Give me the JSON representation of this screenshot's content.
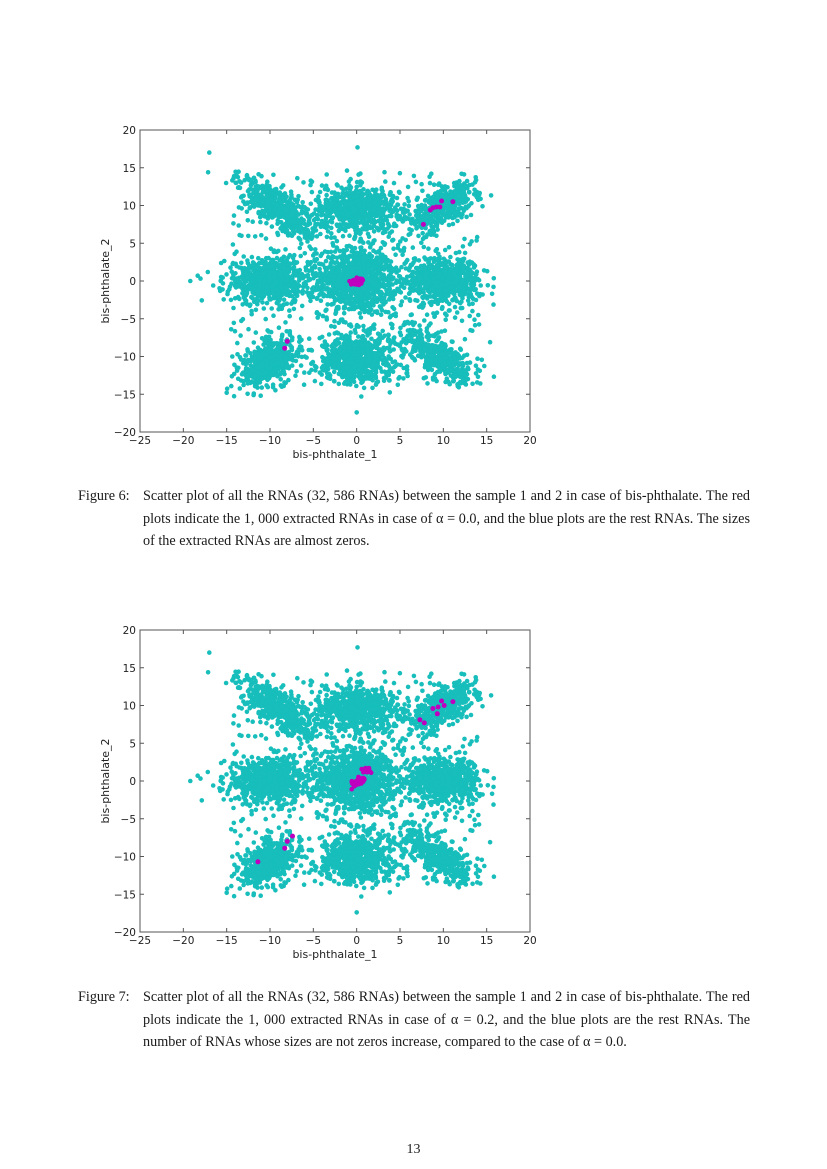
{
  "page_number": "13",
  "colors": {
    "rest_rnas": "#17bebb",
    "extracted_rnas": "#bf00bf",
    "axes": "#555555"
  },
  "figures": [
    {
      "label": "Figure 6:",
      "caption": "Scatter plot of all the RNAs (32, 586 RNAs) between the sample 1 and 2 in case of bis-phthalate. The red plots indicate the 1, 000 extracted RNAs in case of α = 0.0, and the blue plots are the rest RNAs. The sizes of the extracted RNAs are almost zeros."
    },
    {
      "label": "Figure 7:",
      "caption": "Scatter plot of all the RNAs (32, 586 RNAs) between the sample 1 and 2 in case of bis-phthalate. The red plots indicate the 1, 000 extracted RNAs in case of α = 0.2, and the blue plots are the rest RNAs. The number of RNAs whose sizes are not zeros increase, compared to the case of α = 0.0."
    }
  ],
  "chart_data": [
    {
      "type": "scatter",
      "title": "",
      "xlabel": "bis-phthalate_1",
      "ylabel": "bis-phthalate_2",
      "xlim": [
        -25,
        20
      ],
      "ylim": [
        -20,
        20
      ],
      "xticks": [
        "−25",
        "−20",
        "−15",
        "−10",
        "−5",
        "0",
        "5",
        "10",
        "15",
        "20"
      ],
      "yticks": [
        "20",
        "15",
        "10",
        "5",
        "0",
        "−5",
        "−10",
        "−15",
        "−20"
      ],
      "grid": false,
      "legend": null,
      "series": [
        {
          "name": "rest RNAs",
          "color": "#17bebb",
          "clusters": [
            {
              "center": [
                0,
                0
              ],
              "shape": "central dense blob"
            },
            {
              "center": [
                0,
                10
              ],
              "shape": "vertical arm, y 5..14.5"
            },
            {
              "center": [
                0,
                -10.5
              ],
              "shape": "vertical arm, y -5..-14"
            },
            {
              "center": [
                -10,
                0
              ],
              "shape": "horizontal arm, x -15..-5"
            },
            {
              "center": [
                10,
                0
              ],
              "shape": "horizontal arm, x 5..14"
            },
            {
              "center": [
                -9,
                9.5
              ],
              "shape": "diagonal cluster NW"
            },
            {
              "center": [
                9.5,
                9.5
              ],
              "shape": "diagonal cluster NE"
            },
            {
              "center": [
                -10,
                -10.5
              ],
              "shape": "diagonal cluster SW"
            },
            {
              "center": [
                9.5,
                -10
              ],
              "shape": "diagonal cluster SE"
            }
          ],
          "outliers": [
            [
              -17,
              17
            ],
            [
              0.1,
              17.7
            ],
            [
              -19.2,
              0
            ],
            [
              0,
              -17.4
            ],
            [
              15.4,
              -8.1
            ],
            [
              14.7,
              1.4
            ]
          ]
        },
        {
          "name": "extracted RNAs (α = 0.0)",
          "color": "#bf00bf",
          "points": [
            [
              0,
              0
            ],
            [
              0.3,
              0.2
            ],
            [
              -0.3,
              -0.2
            ],
            [
              8.5,
              9.4
            ],
            [
              8.8,
              9.7
            ],
            [
              9.2,
              9.8
            ],
            [
              9.6,
              9.8
            ],
            [
              9.8,
              10.6
            ],
            [
              11.1,
              10.5
            ],
            [
              7.7,
              7.5
            ],
            [
              -8,
              -8
            ],
            [
              -8.3,
              -8.9
            ]
          ]
        }
      ]
    },
    {
      "type": "scatter",
      "title": "",
      "xlabel": "bis-phthalate_1",
      "ylabel": "bis-phthalate_2",
      "xlim": [
        -25,
        20
      ],
      "ylim": [
        -20,
        20
      ],
      "xticks": [
        "−25",
        "−20",
        "−15",
        "−10",
        "−5",
        "0",
        "5",
        "10",
        "15",
        "20"
      ],
      "yticks": [
        "20",
        "15",
        "10",
        "5",
        "0",
        "−5",
        "−10",
        "−15",
        "−20"
      ],
      "grid": false,
      "legend": null,
      "series": [
        {
          "name": "rest RNAs",
          "color": "#17bebb",
          "clusters": "same as Figure 6",
          "outliers": [
            [
              -17,
              17
            ],
            [
              0.1,
              17.7
            ],
            [
              -19.2,
              0
            ],
            [
              0,
              -17.4
            ],
            [
              15.4,
              -8.1
            ],
            [
              14.7,
              1.4
            ]
          ]
        },
        {
          "name": "extracted RNAs (α = 0.2)",
          "color": "#bf00bf",
          "points": [
            [
              0,
              0
            ],
            [
              0.5,
              0.3
            ],
            [
              1.1,
              1.4
            ],
            [
              -0.4,
              -0.3
            ],
            [
              8.8,
              9.6
            ],
            [
              9.4,
              9.8
            ],
            [
              9.8,
              10.6
            ],
            [
              10.1,
              10
            ],
            [
              11.1,
              10.5
            ],
            [
              9.3,
              8.9
            ],
            [
              7.3,
              8.1
            ],
            [
              7.8,
              7.7
            ],
            [
              -8,
              -8
            ],
            [
              -8.3,
              -8.9
            ],
            [
              -7.4,
              -7.3
            ],
            [
              -11.4,
              -10.7
            ]
          ]
        }
      ]
    }
  ]
}
